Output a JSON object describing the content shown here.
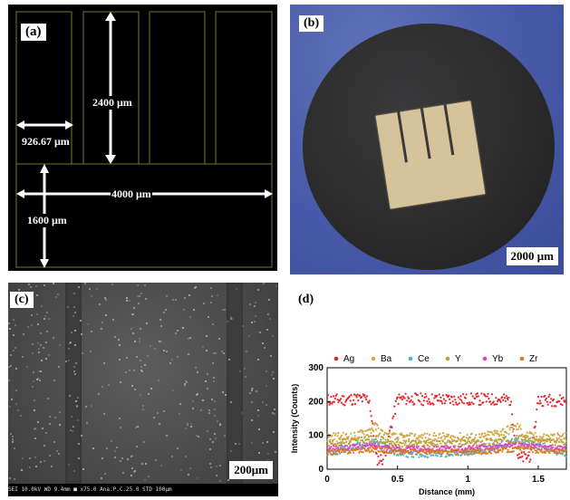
{
  "panel_a": {
    "tag": "(a)",
    "dims": {
      "finger_length": "2400 μm",
      "finger_width": "926.67 μm",
      "pad_length": "4000 μm",
      "pad_height": "1600 μm"
    },
    "colors": {
      "background": "#000000",
      "outline": "#6c7f2e",
      "arrow": "#ffffff"
    }
  },
  "panel_b": {
    "tag": "(b)",
    "scale": "2000 μm",
    "colors": {
      "backdrop": "#4a5fae",
      "disk": "#2a2a2b",
      "sample": "#d4c39b"
    }
  },
  "panel_c": {
    "tag": "(c)",
    "scale": "200μm",
    "info_text": "SEI    10.0kV  WD 9.4mm  ■ x75.0  Ana.P.C.25.0  STD        100μm     ",
    "colors": {
      "surface": "#4f4f4f",
      "trench": "#3d3d3d"
    }
  },
  "panel_d": {
    "tag": "(d)"
  },
  "chart_data": {
    "type": "scatter",
    "title": "",
    "xlabel": "Distance (mm)",
    "ylabel": "Intensity (Counts)",
    "xlim": [
      0,
      1.7
    ],
    "ylim": [
      0,
      300
    ],
    "xticks": [
      "0",
      "0.5",
      "1",
      "1.5"
    ],
    "yticks": [
      "0",
      "100",
      "200",
      "300"
    ],
    "legend_position": "top",
    "series": [
      {
        "name": "Ag",
        "color": "#e8242b",
        "marker": "circle",
        "x": [
          0.0,
          0.1,
          0.2,
          0.3,
          0.35,
          0.4,
          0.5,
          0.7,
          0.9,
          1.1,
          1.3,
          1.36,
          1.45,
          1.5,
          1.7
        ],
        "y": [
          205,
          205,
          208,
          207,
          30,
          30,
          208,
          207,
          206,
          207,
          205,
          30,
          40,
          205,
          203
        ]
      },
      {
        "name": "Ba",
        "color": "#d2a646",
        "marker": "square",
        "x": [
          0.0,
          0.2,
          0.35,
          0.4,
          0.5,
          0.8,
          1.1,
          1.36,
          1.4,
          1.5,
          1.7
        ],
        "y": [
          95,
          95,
          125,
          100,
          92,
          94,
          93,
          125,
          100,
          93,
          94
        ]
      },
      {
        "name": "Ce",
        "color": "#4fb3d6",
        "marker": "triangle",
        "x": [
          0.0,
          0.35,
          0.5,
          1.0,
          1.36,
          1.7
        ],
        "y": [
          45,
          85,
          45,
          45,
          85,
          45
        ]
      },
      {
        "name": "Y",
        "color": "#b9a23a",
        "marker": "triangle-down",
        "x": [
          0.0,
          0.35,
          0.5,
          1.0,
          1.36,
          1.7
        ],
        "y": [
          75,
          90,
          75,
          76,
          90,
          75
        ]
      },
      {
        "name": "Yb",
        "color": "#e040c8",
        "marker": "diamond",
        "x": [
          0.0,
          0.35,
          0.5,
          1.0,
          1.36,
          1.7
        ],
        "y": [
          60,
          70,
          60,
          61,
          70,
          60
        ]
      },
      {
        "name": "Zr",
        "color": "#d87a1e",
        "marker": "triangle-left",
        "x": [
          0.0,
          0.35,
          0.5,
          1.0,
          1.36,
          1.7
        ],
        "y": [
          50,
          60,
          52,
          50,
          60,
          50
        ]
      }
    ]
  }
}
